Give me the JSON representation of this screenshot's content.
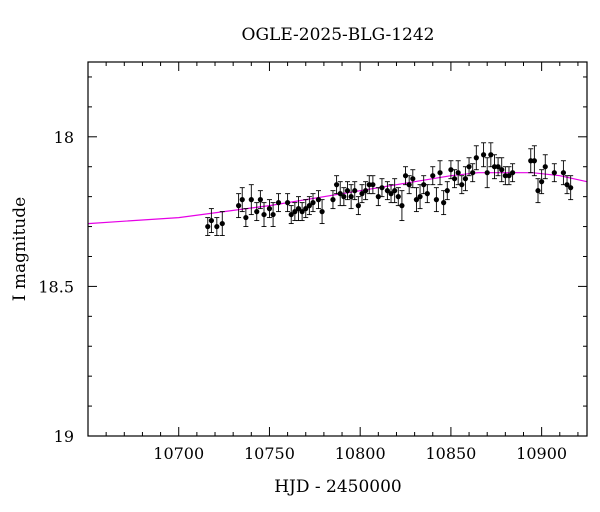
{
  "chart_data": {
    "type": "scatter",
    "title": "OGLE-2025-BLG-1242",
    "xlabel": "HJD - 2450000",
    "ylabel": "I magnitude",
    "xlim": [
      10650,
      10925
    ],
    "ylim": [
      19.0,
      17.75
    ],
    "y_inverted": true,
    "x_ticks": [
      10700,
      10750,
      10800,
      10850,
      10900
    ],
    "y_ticks": [
      18,
      18.5,
      19
    ],
    "y_tick_labels": [
      "18",
      "18.5",
      "19"
    ],
    "grid": false,
    "model_color": "#e600e6",
    "point_color": "#000000",
    "points": [
      [
        10716,
        18.3,
        0.03
      ],
      [
        10718,
        18.28,
        0.04
      ],
      [
        10721,
        18.3,
        0.03
      ],
      [
        10724,
        18.29,
        0.04
      ],
      [
        10733,
        18.23,
        0.04
      ],
      [
        10735,
        18.21,
        0.04
      ],
      [
        10737,
        18.27,
        0.03
      ],
      [
        10740,
        18.21,
        0.05
      ],
      [
        10743,
        18.25,
        0.03
      ],
      [
        10745,
        18.21,
        0.03
      ],
      [
        10747,
        18.26,
        0.04
      ],
      [
        10750,
        18.24,
        0.03
      ],
      [
        10752,
        18.26,
        0.04
      ],
      [
        10755,
        18.22,
        0.03
      ],
      [
        10760,
        18.22,
        0.03
      ],
      [
        10762,
        18.26,
        0.03
      ],
      [
        10764,
        18.25,
        0.03
      ],
      [
        10766,
        18.24,
        0.04
      ],
      [
        10768,
        18.25,
        0.03
      ],
      [
        10770,
        18.24,
        0.03
      ],
      [
        10772,
        18.23,
        0.03
      ],
      [
        10774,
        18.22,
        0.03
      ],
      [
        10777,
        18.21,
        0.03
      ],
      [
        10779,
        18.25,
        0.04
      ],
      [
        10785,
        18.21,
        0.03
      ],
      [
        10787,
        18.16,
        0.03
      ],
      [
        10789,
        18.19,
        0.04
      ],
      [
        10791,
        18.2,
        0.03
      ],
      [
        10793,
        18.18,
        0.03
      ],
      [
        10795,
        18.2,
        0.04
      ],
      [
        10797,
        18.18,
        0.03
      ],
      [
        10799,
        18.23,
        0.03
      ],
      [
        10801,
        18.19,
        0.03
      ],
      [
        10803,
        18.18,
        0.03
      ],
      [
        10805,
        18.16,
        0.03
      ],
      [
        10807,
        18.16,
        0.03
      ],
      [
        10810,
        18.2,
        0.03
      ],
      [
        10812,
        18.17,
        0.03
      ],
      [
        10815,
        18.18,
        0.03
      ],
      [
        10817,
        18.19,
        0.03
      ],
      [
        10819,
        18.18,
        0.04
      ],
      [
        10821,
        18.2,
        0.03
      ],
      [
        10823,
        18.23,
        0.05
      ],
      [
        10825,
        18.13,
        0.03
      ],
      [
        10827,
        18.16,
        0.03
      ],
      [
        10829,
        18.14,
        0.03
      ],
      [
        10831,
        18.21,
        0.04
      ],
      [
        10833,
        18.2,
        0.04
      ],
      [
        10835,
        18.16,
        0.03
      ],
      [
        10837,
        18.19,
        0.03
      ],
      [
        10840,
        18.13,
        0.03
      ],
      [
        10842,
        18.21,
        0.04
      ],
      [
        10844,
        18.12,
        0.04
      ],
      [
        10846,
        18.22,
        0.04
      ],
      [
        10848,
        18.18,
        0.03
      ],
      [
        10850,
        18.11,
        0.03
      ],
      [
        10852,
        18.14,
        0.03
      ],
      [
        10854,
        18.12,
        0.04
      ],
      [
        10856,
        18.16,
        0.03
      ],
      [
        10858,
        18.14,
        0.04
      ],
      [
        10860,
        18.1,
        0.03
      ],
      [
        10862,
        18.12,
        0.03
      ],
      [
        10864,
        18.07,
        0.04
      ],
      [
        10868,
        18.06,
        0.04
      ],
      [
        10870,
        18.12,
        0.05
      ],
      [
        10872,
        18.06,
        0.04
      ],
      [
        10874,
        18.1,
        0.04
      ],
      [
        10876,
        18.1,
        0.03
      ],
      [
        10878,
        18.11,
        0.04
      ],
      [
        10880,
        18.13,
        0.03
      ],
      [
        10882,
        18.13,
        0.03
      ],
      [
        10884,
        18.12,
        0.03
      ],
      [
        10894,
        18.08,
        0.04
      ],
      [
        10896,
        18.08,
        0.05
      ],
      [
        10898,
        18.18,
        0.04
      ],
      [
        10900,
        18.15,
        0.04
      ],
      [
        10902,
        18.1,
        0.04
      ],
      [
        10907,
        18.12,
        0.03
      ],
      [
        10912,
        18.12,
        0.04
      ],
      [
        10914,
        18.16,
        0.03
      ],
      [
        10916,
        18.17,
        0.04
      ]
    ],
    "model_curve": [
      [
        10650,
        18.29
      ],
      [
        10700,
        18.27
      ],
      [
        10750,
        18.23
      ],
      [
        10800,
        18.18
      ],
      [
        10830,
        18.15
      ],
      [
        10850,
        18.13
      ],
      [
        10865,
        18.12
      ],
      [
        10880,
        18.12
      ],
      [
        10895,
        18.12
      ],
      [
        10910,
        18.13
      ],
      [
        10925,
        18.15
      ]
    ]
  }
}
